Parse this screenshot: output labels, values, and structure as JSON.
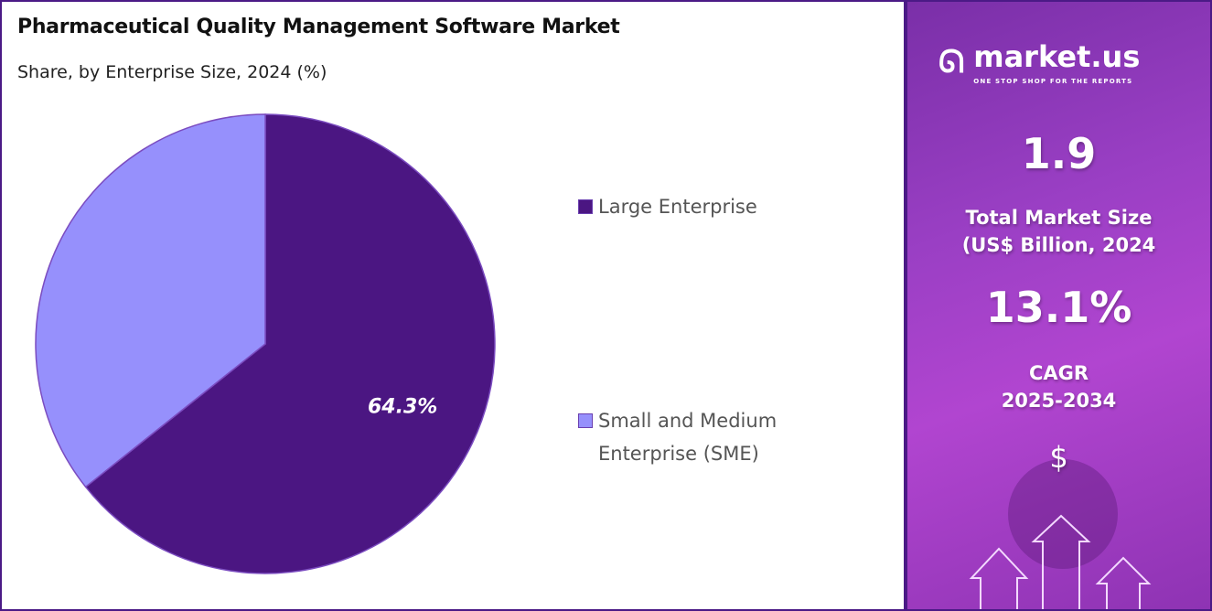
{
  "header": {
    "title": "Pharmaceutical Quality Management Software Market",
    "subtitle": "Share, by Enterprise Size, 2024 (%)"
  },
  "chart_data": {
    "type": "pie",
    "title": "Pharmaceutical Quality Management Software Market",
    "subtitle": "Share, by Enterprise Size, 2024 (%)",
    "categories": [
      "Large Enterprise",
      "Small and Medium Enterprise (SME)"
    ],
    "values": [
      64.3,
      35.7
    ],
    "data_labels": [
      "64.3%",
      ""
    ],
    "colors": [
      "#4b1682",
      "#9690fc"
    ],
    "legend": "right"
  },
  "sidebar": {
    "brand": "market.us",
    "tagline": "ONE STOP SHOP FOR THE REPORTS",
    "market_size": "1.9",
    "market_size_label_1": "Total Market Size",
    "market_size_label_2": "(US$ Billion, 2024",
    "cagr": "13.1%",
    "cagr_label_1": "CAGR",
    "cagr_label_2": "2025-2034",
    "currency_symbol": "$"
  }
}
